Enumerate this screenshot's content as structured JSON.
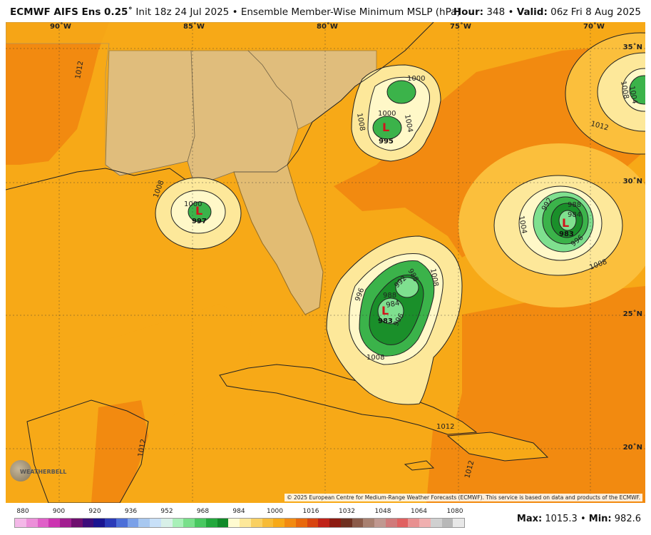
{
  "header": {
    "model": "ECMWF AIFS Ens 0.25˚",
    "init": "Init 18z 24 Jul 2025",
    "product": "Ensemble Member-Wise Minimum MSLP (hPa)",
    "hour_label": "Hour:",
    "hour": "348",
    "valid_label": "Valid:",
    "valid": "06z Fri 8 Aug 2025",
    "bullet": "•"
  },
  "map": {
    "lon_labels": [
      "90˚W",
      "85˚W",
      "80˚W",
      "75˚W",
      "70˚W"
    ],
    "lat_labels": [
      "35˚N",
      "30˚N",
      "25˚N",
      "20˚N"
    ],
    "contour_labels": [
      "1012",
      "1012",
      "1008",
      "1000",
      "1008",
      "1000",
      "1004",
      "1000",
      "1008",
      "1004",
      "1008",
      "1004",
      "1008",
      "1012",
      "1012",
      "1012",
      "992",
      "988",
      "984",
      "996",
      "988",
      "996",
      "992",
      "984",
      "988",
      "996",
      "1008"
    ],
    "lows": [
      {
        "symbol": "L",
        "value": "997"
      },
      {
        "symbol": "L",
        "value": "995"
      },
      {
        "symbol": "L",
        "value": "983"
      },
      {
        "symbol": "L",
        "value": "983"
      }
    ],
    "copyright": "© 2025 European Centre for Medium-Range Weather Forecasts (ECMWF). This service is based on data and products of the ECMWF.",
    "logo_text": "WEATHERBELL"
  },
  "colorbar": {
    "tick_labels": [
      "880",
      "900",
      "920",
      "936",
      "952",
      "968",
      "984",
      "1000",
      "1016",
      "1032",
      "1048",
      "1064",
      "1080"
    ],
    "colors": [
      "#f4b8e8",
      "#ec8fd9",
      "#e05fc8",
      "#cc33b0",
      "#a11d8f",
      "#6e0e6e",
      "#3c0c7a",
      "#1a1490",
      "#2a3ab8",
      "#4b6ed8",
      "#7aa0e8",
      "#a8c8f0",
      "#c8e0f8",
      "#d8f0e8",
      "#a8f0b8",
      "#78e08a",
      "#48c860",
      "#22a83c",
      "#108a28",
      "#fffbd0",
      "#fde89a",
      "#f9d062",
      "#f7bb36",
      "#f7a917",
      "#f28a10",
      "#e8680c",
      "#d84410",
      "#c02218",
      "#8c1a10",
      "#6e3020",
      "#8a5a48",
      "#a88070",
      "#c09890",
      "#d07a7a",
      "#e06060",
      "#e89090",
      "#f0b0b0",
      "#d0d0d0",
      "#b8b8b8",
      "#e8e8e8"
    ]
  },
  "stats": {
    "max_label": "Max:",
    "max": "1015.3",
    "min_label": "Min:",
    "min": "982.6",
    "bullet": "•"
  },
  "colors": {
    "base": "#f7a917",
    "ring_1012": "#fbbf3c",
    "ring_1008": "#fde89a",
    "ring_1004": "#fff8c8",
    "green_1": "#7fe08f",
    "green_2": "#3bb34a",
    "green_3": "#1a8f2a",
    "land_grey": "#cfcfcf"
  }
}
